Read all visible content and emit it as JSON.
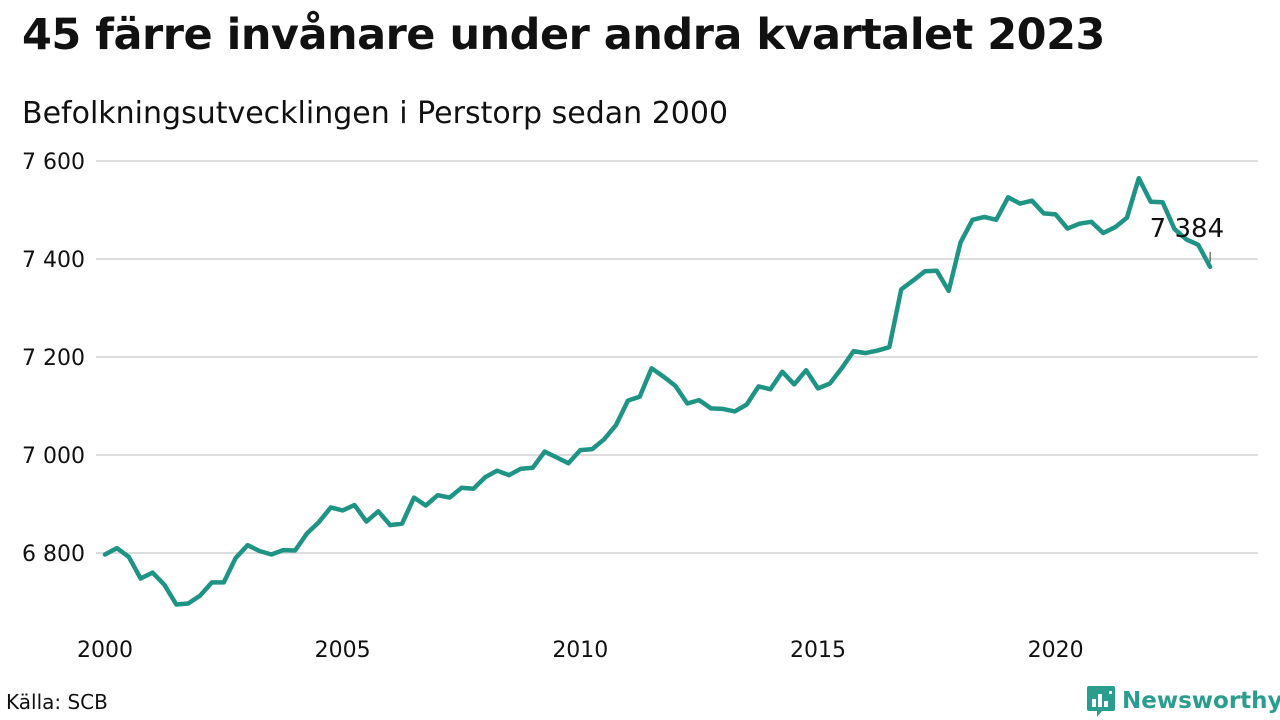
{
  "header": {
    "title": "45 färre invånare under andra kvartalet 2023",
    "subtitle": "Befolkningsutvecklingen i Perstorp sedan 2000"
  },
  "footer": {
    "source": "Källa: SCB",
    "brand": "Newsworthy"
  },
  "colors": {
    "line": "#1f9484",
    "grid": "#dddddd",
    "brand": "#2a9d8f"
  },
  "chart_data": {
    "type": "line",
    "title": "45 färre invånare under andra kvartalet 2023",
    "subtitle": "Befolkningsutvecklingen i Perstorp sedan 2000",
    "xlabel": "",
    "ylabel": "",
    "xlim": [
      2000.0,
      2023.5
    ],
    "ylim": [
      6650,
      7620
    ],
    "x_ticks": [
      2000,
      2005,
      2010,
      2015,
      2020
    ],
    "x_tick_labels": [
      "2000",
      "2005",
      "2010",
      "2015",
      "2020"
    ],
    "y_ticks": [
      6800,
      7000,
      7200,
      7400,
      7600
    ],
    "y_tick_labels": [
      "6 800",
      "7 000",
      "7 200",
      "7 400",
      "7 600"
    ],
    "grid": true,
    "legend": "none",
    "annotation": {
      "label": "7 384",
      "x": 2023.25,
      "y": 7384
    },
    "series": [
      {
        "x": [
          2000.0,
          2000.25,
          2000.5,
          2000.75,
          2001.0,
          2001.25,
          2001.5,
          2001.75,
          2002.0,
          2002.25,
          2002.5,
          2002.75,
          2003.0,
          2003.25,
          2003.5,
          2003.75,
          2004.0,
          2004.25,
          2004.5,
          2004.75,
          2005.0,
          2005.25,
          2005.5,
          2005.75,
          2006.0,
          2006.25,
          2006.5,
          2006.75,
          2007.0,
          2007.25,
          2007.5,
          2007.75,
          2008.0,
          2008.25,
          2008.5,
          2008.75,
          2009.0,
          2009.25,
          2009.5,
          2009.75,
          2010.0,
          2010.25,
          2010.5,
          2010.75,
          2011.0,
          2011.25,
          2011.5,
          2011.75,
          2012.0,
          2012.25,
          2012.5,
          2012.75,
          2013.0,
          2013.25,
          2013.5,
          2013.75,
          2014.0,
          2014.25,
          2014.5,
          2014.75,
          2015.0,
          2015.25,
          2015.5,
          2015.75,
          2016.0,
          2016.25,
          2016.5,
          2016.75,
          2017.0,
          2017.25,
          2017.5,
          2017.75,
          2018.0,
          2018.25,
          2018.5,
          2018.75,
          2019.0,
          2019.25,
          2019.5,
          2019.75,
          2020.0,
          2020.25,
          2020.5,
          2020.75,
          2021.0,
          2021.25,
          2021.5,
          2021.75,
          2022.0,
          2022.25,
          2022.5,
          2022.75,
          2023.0,
          2023.25
        ],
        "values": [
          6797,
          6810,
          6792,
          6748,
          6760,
          6735,
          6695,
          6697,
          6713,
          6740,
          6740,
          6790,
          6816,
          6804,
          6797,
          6806,
          6805,
          6840,
          6863,
          6893,
          6887,
          6898,
          6864,
          6885,
          6857,
          6860,
          6913,
          6897,
          6918,
          6913,
          6933,
          6931,
          6955,
          6968,
          6959,
          6972,
          6974,
          7007,
          6995,
          6983,
          7010,
          7012,
          7032,
          7061,
          7111,
          7119,
          7177,
          7160,
          7141,
          7105,
          7112,
          7095,
          7094,
          7089,
          7103,
          7140,
          7134,
          7170,
          7144,
          7173,
          7136,
          7146,
          7177,
          7212,
          7208,
          7213,
          7220,
          7338,
          7356,
          7375,
          7376,
          7335,
          7434,
          7480,
          7486,
          7480,
          7526,
          7513,
          7519,
          7493,
          7491,
          7462,
          7472,
          7476,
          7453,
          7465,
          7484,
          7565,
          7517,
          7516,
          7461,
          7440,
          7429,
          7384
        ]
      }
    ]
  }
}
